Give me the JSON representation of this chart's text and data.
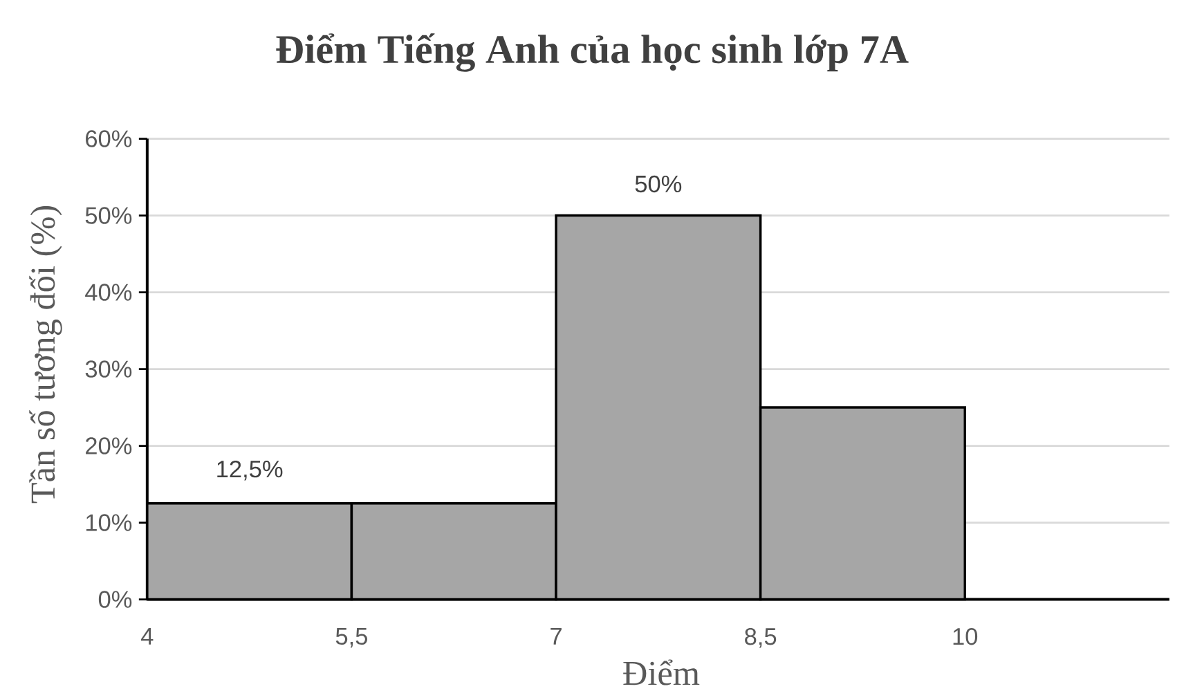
{
  "chart_data": {
    "type": "histogram",
    "title": "Điểm Tiếng Anh của học sinh lớp 7A",
    "xlabel": "Điểm",
    "ylabel": "Tần số tương đối (%)",
    "bins": [
      4,
      5.5,
      7,
      8.5,
      10
    ],
    "values": [
      12.5,
      12.5,
      50,
      25
    ],
    "value_labels": [
      "12,5%",
      null,
      "50%",
      null
    ],
    "color": "#a6a6a6",
    "xlim": [
      4,
      11.5
    ],
    "ylim": [
      0,
      60
    ],
    "xticks": [
      4,
      {
        "value": 5.5,
        "label": "5,5"
      },
      7,
      {
        "value": 8.5,
        "label": "8,5"
      },
      10
    ],
    "yticks": [
      {
        "value": 0,
        "label": "0%"
      },
      {
        "value": 10,
        "label": "10%"
      },
      {
        "value": 20,
        "label": "20%"
      },
      {
        "value": 30,
        "label": "30%"
      },
      {
        "value": 40,
        "label": "40%"
      },
      {
        "value": 50,
        "label": "50%"
      },
      {
        "value": 60,
        "label": "60%"
      }
    ],
    "grid": "y"
  }
}
